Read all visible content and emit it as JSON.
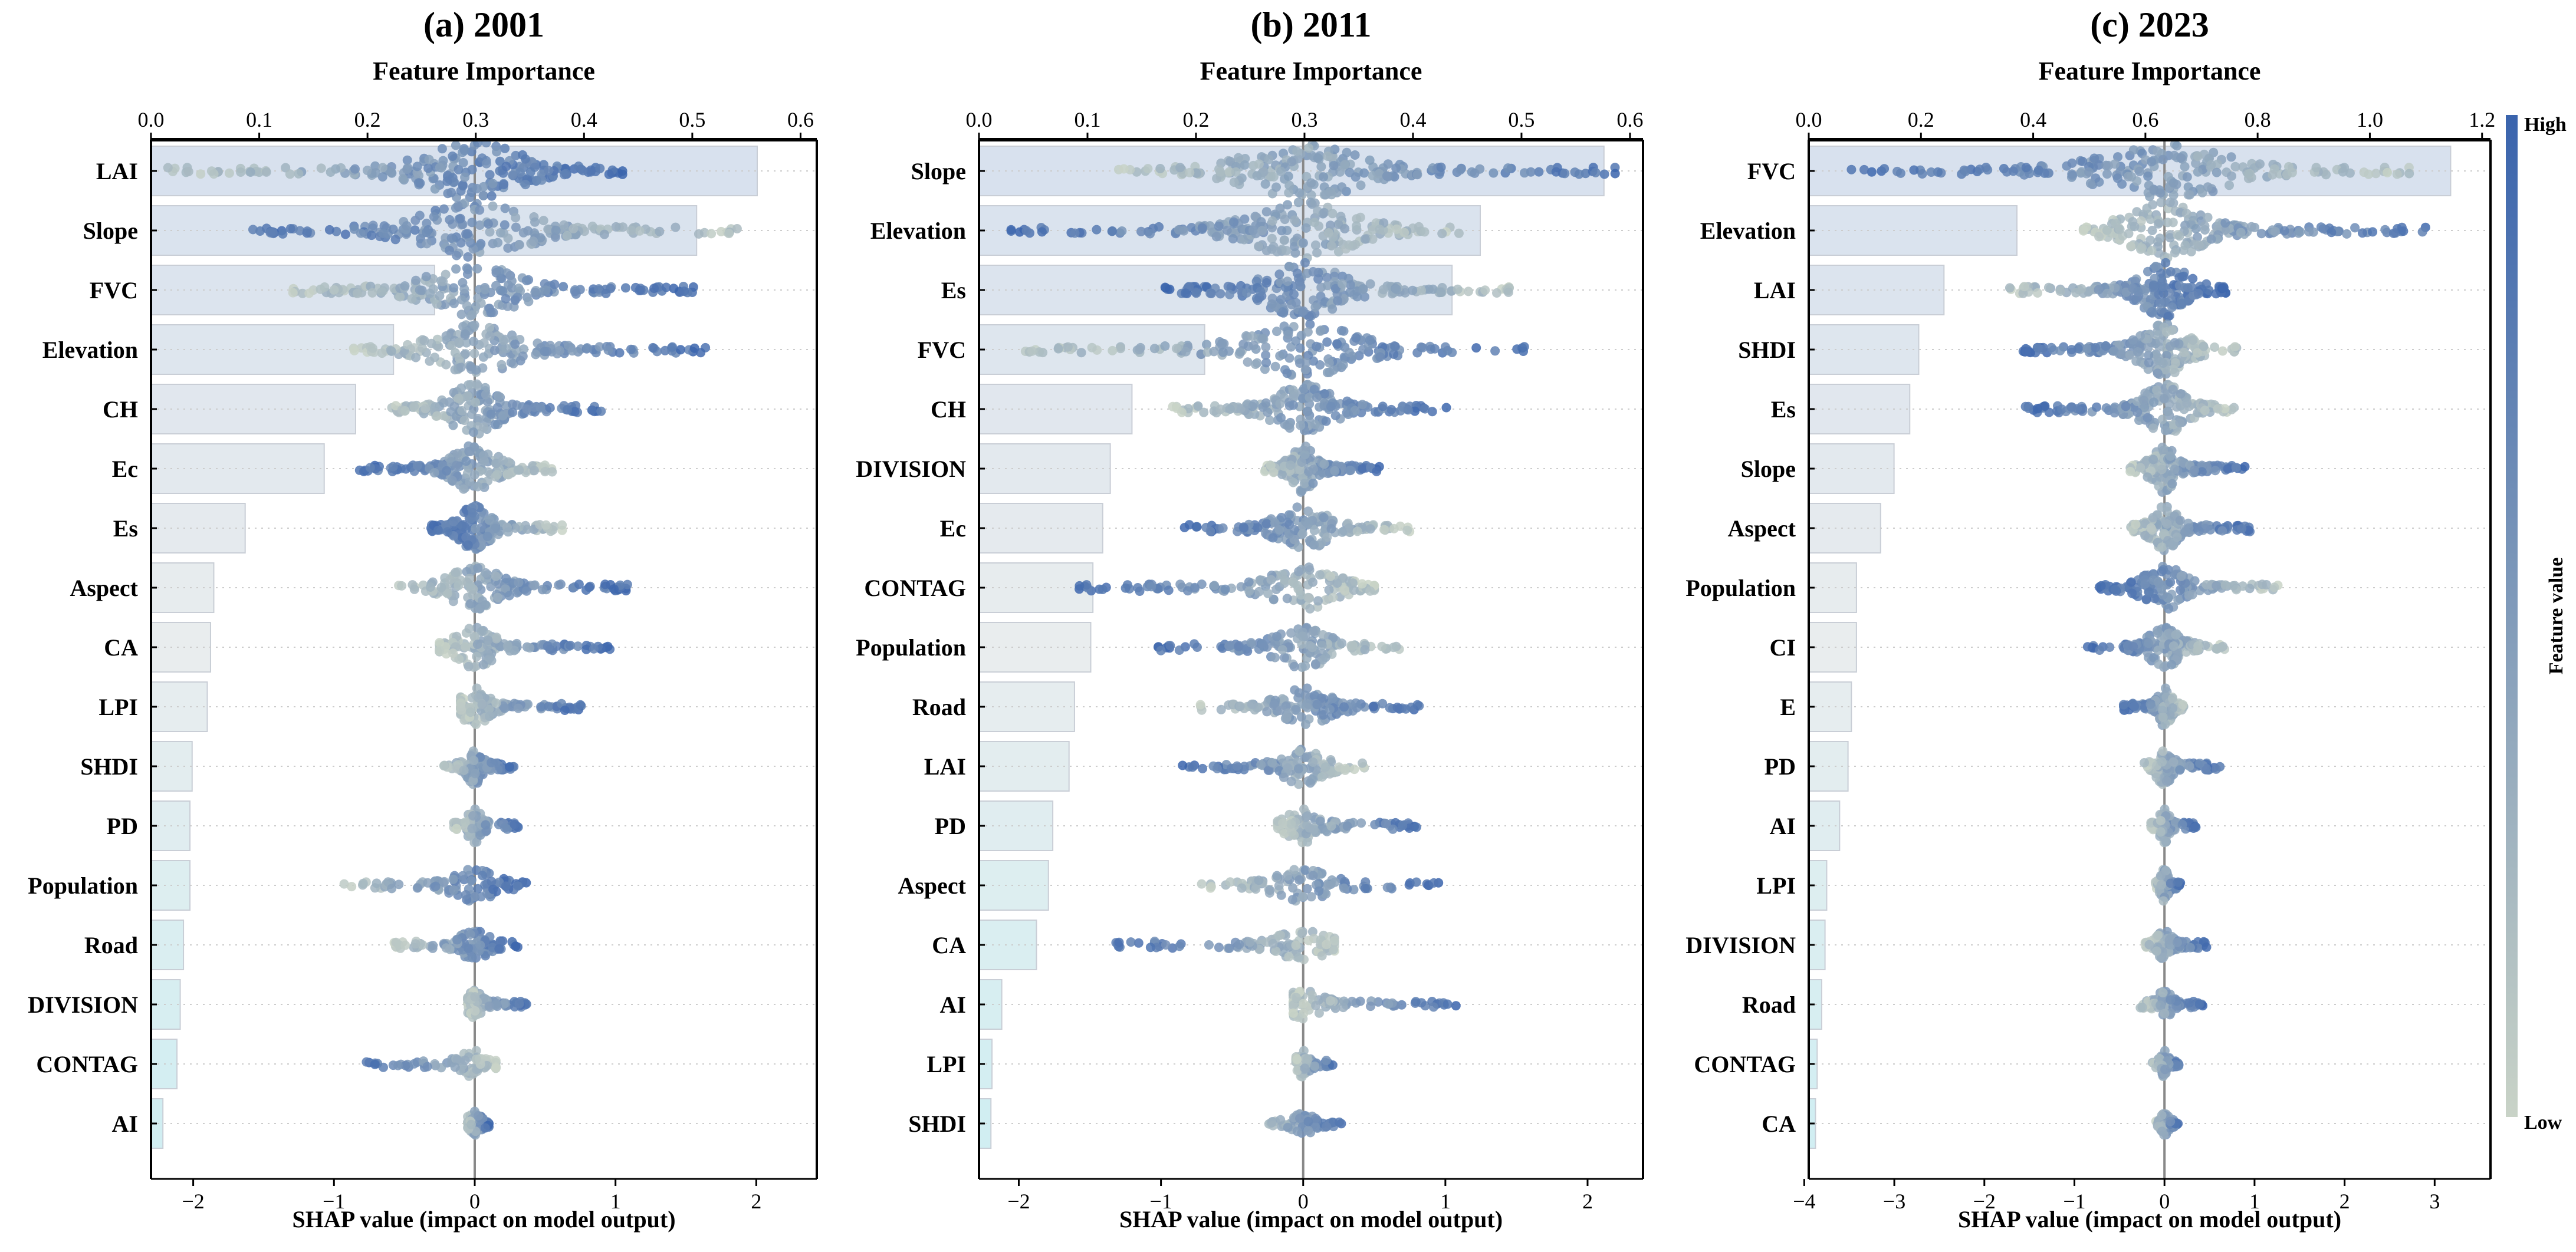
{
  "colorbar": {
    "high_label": "High",
    "low_label": "Low",
    "title": "Feature value",
    "high_color": "#3a64ad",
    "low_color": "#c9d3c7"
  },
  "chart_data": [
    {
      "type": "scatter",
      "panel_title": "(a) 2001",
      "top_axis_title": "Feature Importance",
      "xlabel": "SHAP value (impact on model output)",
      "importance_xlim": [
        0,
        0.615
      ],
      "importance_ticks": [
        "0.0",
        "0.1",
        "0.2",
        "0.3",
        "0.4",
        "0.5",
        "0.6"
      ],
      "shap_xlim": [
        -2.3,
        2.43
      ],
      "shap_ticks": [
        -2,
        -1,
        0,
        1,
        2
      ],
      "features": [
        {
          "name": "LAI",
          "importance": 0.56,
          "shap_range": [
            -2.23,
            1.05
          ],
          "high_side": "positive"
        },
        {
          "name": "Slope",
          "importance": 0.504,
          "shap_range": [
            -1.67,
            1.93
          ],
          "high_side": "negative"
        },
        {
          "name": "FVC",
          "importance": 0.262,
          "shap_range": [
            -1.3,
            1.6
          ],
          "high_side": "positive"
        },
        {
          "name": "Elevation",
          "importance": 0.224,
          "shap_range": [
            -0.86,
            1.66
          ],
          "high_side": "positive"
        },
        {
          "name": "CH",
          "importance": 0.189,
          "shap_range": [
            -0.63,
            1.0
          ],
          "high_side": "positive"
        },
        {
          "name": "Ec",
          "importance": 0.16,
          "shap_range": [
            -0.83,
            0.55
          ],
          "high_side": "negative"
        },
        {
          "name": "Es",
          "importance": 0.087,
          "shap_range": [
            -0.31,
            0.64
          ],
          "high_side": "negative"
        },
        {
          "name": "Aspect",
          "importance": 0.058,
          "shap_range": [
            -0.54,
            1.1
          ],
          "high_side": "positive"
        },
        {
          "name": "CA",
          "importance": 0.055,
          "shap_range": [
            -0.25,
            0.97
          ],
          "high_side": "positive"
        },
        {
          "name": "LPI",
          "importance": 0.052,
          "shap_range": [
            -0.1,
            0.77
          ],
          "high_side": "positive"
        },
        {
          "name": "SHDI",
          "importance": 0.038,
          "shap_range": [
            -0.22,
            0.28
          ],
          "high_side": "positive"
        },
        {
          "name": "PD",
          "importance": 0.036,
          "shap_range": [
            -0.15,
            0.31
          ],
          "high_side": "positive"
        },
        {
          "name": "Population",
          "importance": 0.036,
          "shap_range": [
            -0.94,
            0.38
          ],
          "high_side": "positive"
        },
        {
          "name": "Road",
          "importance": 0.03,
          "shap_range": [
            -0.58,
            0.31
          ],
          "high_side": "positive"
        },
        {
          "name": "DIVISION",
          "importance": 0.027,
          "shap_range": [
            -0.05,
            0.4
          ],
          "high_side": "positive"
        },
        {
          "name": "CONTAG",
          "importance": 0.024,
          "shap_range": [
            -0.79,
            0.15
          ],
          "high_side": "negative"
        },
        {
          "name": "AI",
          "importance": 0.011,
          "shap_range": [
            -0.05,
            0.1
          ],
          "high_side": "positive"
        }
      ]
    },
    {
      "type": "scatter",
      "panel_title": "(b) 2011",
      "top_axis_title": "Feature Importance",
      "xlabel": "SHAP value (impact on model output)",
      "importance_xlim": [
        0,
        0.612
      ],
      "importance_ticks": [
        "0.0",
        "0.1",
        "0.2",
        "0.3",
        "0.4",
        "0.5",
        "0.6"
      ],
      "shap_xlim": [
        -2.28,
        2.39
      ],
      "shap_ticks": [
        -2,
        -1,
        0,
        1,
        2
      ],
      "features": [
        {
          "name": "Slope",
          "importance": 0.576,
          "shap_range": [
            -1.3,
            2.28
          ],
          "high_side": "positive"
        },
        {
          "name": "Elevation",
          "importance": 0.462,
          "shap_range": [
            -2.15,
            1.16
          ],
          "high_side": "negative"
        },
        {
          "name": "Es",
          "importance": 0.436,
          "shap_range": [
            -1.0,
            1.47
          ],
          "high_side": "negative"
        },
        {
          "name": "FVC",
          "importance": 0.208,
          "shap_range": [
            -2.0,
            1.58
          ],
          "high_side": "positive"
        },
        {
          "name": "CH",
          "importance": 0.141,
          "shap_range": [
            -0.94,
            1.03
          ],
          "high_side": "positive"
        },
        {
          "name": "DIVISION",
          "importance": 0.121,
          "shap_range": [
            -0.27,
            0.54
          ],
          "high_side": "positive"
        },
        {
          "name": "Ec",
          "importance": 0.114,
          "shap_range": [
            -0.84,
            0.75
          ],
          "high_side": "negative"
        },
        {
          "name": "CONTAG",
          "importance": 0.105,
          "shap_range": [
            -1.6,
            0.5
          ],
          "high_side": "negative"
        },
        {
          "name": "Population",
          "importance": 0.103,
          "shap_range": [
            -1.07,
            0.69
          ],
          "high_side": "negative"
        },
        {
          "name": "Road",
          "importance": 0.088,
          "shap_range": [
            -0.76,
            0.84
          ],
          "high_side": "positive"
        },
        {
          "name": "LAI",
          "importance": 0.083,
          "shap_range": [
            -0.86,
            0.43
          ],
          "high_side": "negative"
        },
        {
          "name": "PD",
          "importance": 0.068,
          "shap_range": [
            -0.18,
            0.8
          ],
          "high_side": "positive"
        },
        {
          "name": "Aspect",
          "importance": 0.064,
          "shap_range": [
            -0.73,
            0.97
          ],
          "high_side": "positive"
        },
        {
          "name": "CA",
          "importance": 0.053,
          "shap_range": [
            -1.33,
            0.22
          ],
          "high_side": "negative"
        },
        {
          "name": "AI",
          "importance": 0.021,
          "shap_range": [
            -0.07,
            1.1
          ],
          "high_side": "positive"
        },
        {
          "name": "LPI",
          "importance": 0.012,
          "shap_range": [
            -0.05,
            0.23
          ],
          "high_side": "positive"
        },
        {
          "name": "SHDI",
          "importance": 0.011,
          "shap_range": [
            -0.29,
            0.29
          ],
          "high_side": "positive"
        }
      ]
    },
    {
      "type": "scatter",
      "panel_title": "(c) 2023",
      "top_axis_title": "Feature Importance",
      "xlabel": "SHAP value (impact on model output)",
      "importance_xlim": [
        0,
        1.215
      ],
      "importance_ticks": [
        "0.0",
        "0.2",
        "0.4",
        "0.6",
        "0.8",
        "1.0",
        "1.2"
      ],
      "shap_xlim": [
        -3.95,
        3.62
      ],
      "shap_ticks": [
        -4,
        -3,
        -2,
        -1,
        0,
        1,
        2,
        3
      ],
      "features": [
        {
          "name": "FVC",
          "importance": 1.144,
          "shap_range": [
            -3.48,
            2.87
          ],
          "high_side": "negative"
        },
        {
          "name": "Elevation",
          "importance": 0.371,
          "shap_range": [
            -0.9,
            3.05
          ],
          "high_side": "positive"
        },
        {
          "name": "LAI",
          "importance": 0.241,
          "shap_range": [
            -1.75,
            0.68
          ],
          "high_side": "positive"
        },
        {
          "name": "SHDI",
          "importance": 0.196,
          "shap_range": [
            -1.6,
            0.8
          ],
          "high_side": "negative"
        },
        {
          "name": "Es",
          "importance": 0.18,
          "shap_range": [
            -1.57,
            0.8
          ],
          "high_side": "negative"
        },
        {
          "name": "Slope",
          "importance": 0.152,
          "shap_range": [
            -0.38,
            0.9
          ],
          "high_side": "positive"
        },
        {
          "name": "Aspect",
          "importance": 0.128,
          "shap_range": [
            -0.38,
            0.95
          ],
          "high_side": "positive"
        },
        {
          "name": "Population",
          "importance": 0.085,
          "shap_range": [
            -0.73,
            1.3
          ],
          "high_side": "negative"
        },
        {
          "name": "CI",
          "importance": 0.085,
          "shap_range": [
            -0.9,
            0.68
          ],
          "high_side": "negative"
        },
        {
          "name": "E",
          "importance": 0.076,
          "shap_range": [
            -0.47,
            0.22
          ],
          "high_side": "negative"
        },
        {
          "name": "PD",
          "importance": 0.07,
          "shap_range": [
            -0.24,
            0.62
          ],
          "high_side": "positive"
        },
        {
          "name": "AI",
          "importance": 0.055,
          "shap_range": [
            -0.15,
            0.35
          ],
          "high_side": "positive"
        },
        {
          "name": "LPI",
          "importance": 0.032,
          "shap_range": [
            -0.1,
            0.18
          ],
          "high_side": "positive"
        },
        {
          "name": "DIVISION",
          "importance": 0.029,
          "shap_range": [
            -0.22,
            0.47
          ],
          "high_side": "positive"
        },
        {
          "name": "Road",
          "importance": 0.023,
          "shap_range": [
            -0.27,
            0.44
          ],
          "high_side": "positive"
        },
        {
          "name": "CONTAG",
          "importance": 0.015,
          "shap_range": [
            -0.15,
            0.22
          ],
          "high_side": "positive"
        },
        {
          "name": "CA",
          "importance": 0.012,
          "shap_range": [
            -0.1,
            0.16
          ],
          "high_side": "positive"
        }
      ]
    }
  ]
}
